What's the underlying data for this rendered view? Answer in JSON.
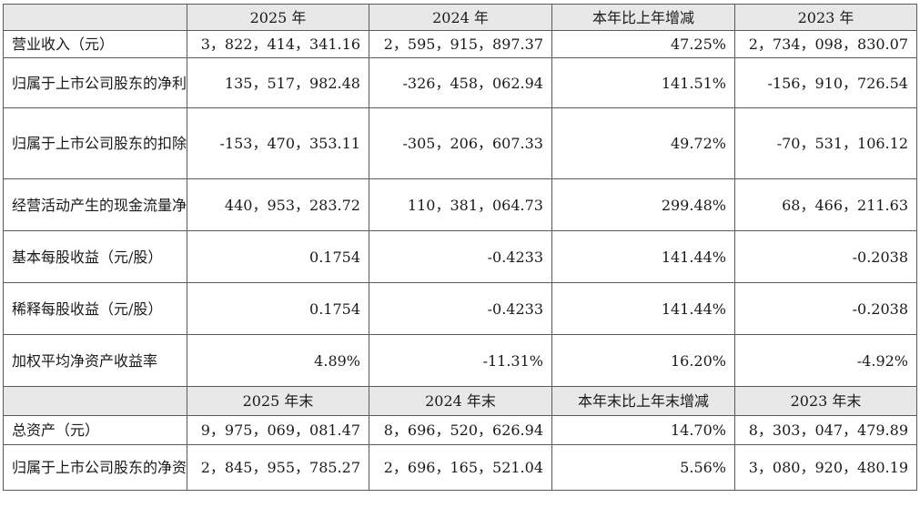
{
  "header1": [
    "2025 年",
    "2024 年",
    "本年比上年增减",
    "2023 年"
  ],
  "rows1": [
    {
      "label": "营业收入（元）",
      "values": [
        "3，822，414，341.16",
        "2，595，915，897.37",
        "47.25%",
        "2，734，098，830.07"
      ]
    },
    {
      "label": "归属于上市公司股东的净利润（元）",
      "values": [
        "135，517，982.48",
        "-326，458，062.94",
        "141.51%",
        "-156，910，726.54"
      ]
    },
    {
      "label": "归属于上市公司股东的扣除非经常性损益的净利润（元）",
      "values": [
        "-153，470，353.11",
        "-305，206，607.33",
        "49.72%",
        "-70，531，106.12"
      ]
    },
    {
      "label": "经营活动产生的现金流量净额（元）",
      "values": [
        "440，953，283.72",
        "110，381，064.73",
        "299.48%",
        "68，466，211.63"
      ]
    },
    {
      "label": "基本每股收益（元/股）",
      "values": [
        "0.1754",
        "-0.4233",
        "141.44%",
        "-0.2038"
      ]
    },
    {
      "label": "稀释每股收益（元/股）",
      "values": [
        "0.1754",
        "-0.4233",
        "141.44%",
        "-0.2038"
      ]
    },
    {
      "label": "加权平均净资产收益率",
      "values": [
        "4.89%",
        "-11.31%",
        "16.20%",
        "-4.92%"
      ]
    }
  ],
  "header2": [
    "2025 年末",
    "2024 年末",
    "本年末比上年末增减",
    "2023 年末"
  ],
  "rows2": [
    {
      "label": "总资产（元）",
      "values": [
        "9，975，069，081.47",
        "8，696，520，626.94",
        "14.70%",
        "8，303，047，479.89"
      ]
    },
    {
      "label": "归属于上市公司股东的净资产（元）",
      "values": [
        "2，845，955，785.27",
        "2，696，165，521.04",
        "5.56%",
        "3，080，920，480.19"
      ]
    }
  ]
}
